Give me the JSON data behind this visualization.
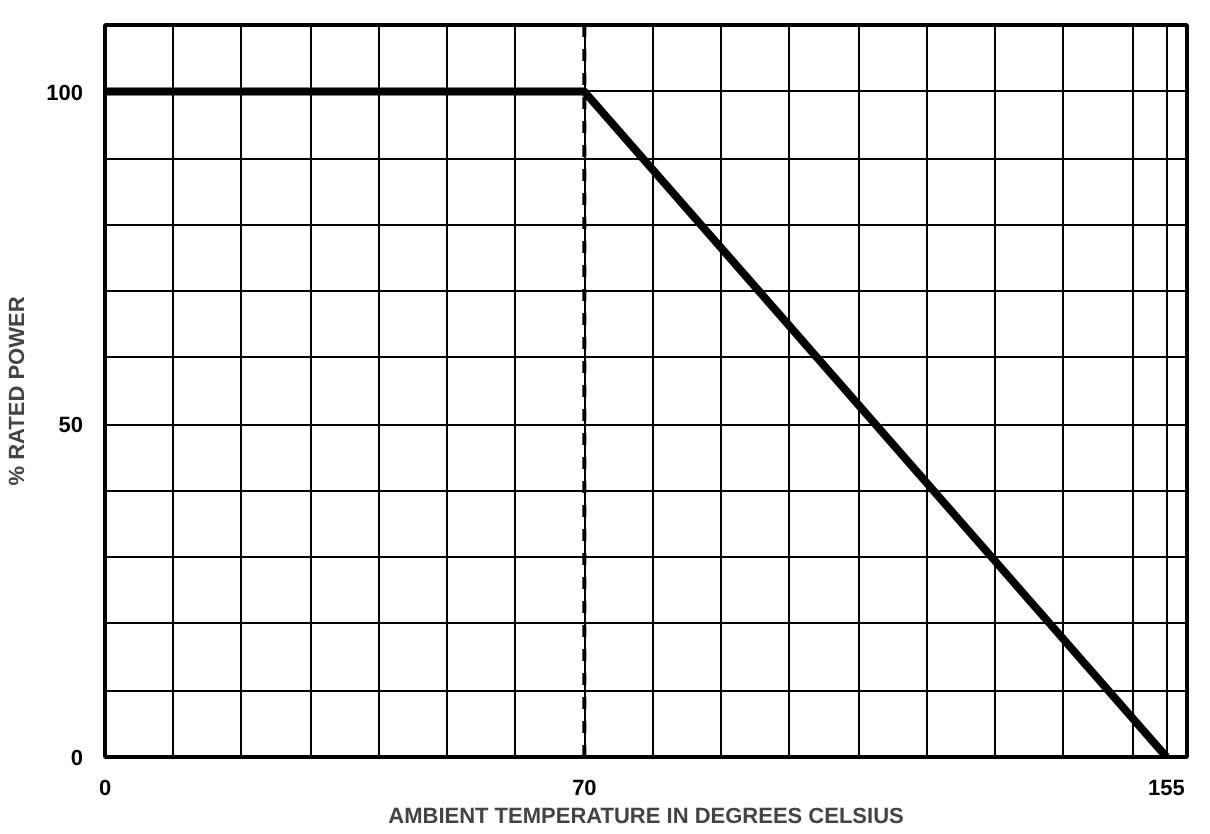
{
  "chart_data": {
    "type": "line",
    "xlabel": "AMBIENT TEMPERATURE IN DEGREES CELSIUS",
    "ylabel": "% RATED POWER",
    "x": [
      0,
      70,
      155
    ],
    "series": [
      {
        "color": "#000000",
        "values": [
          100,
          100,
          0
        ]
      }
    ],
    "xlim": [
      0,
      158
    ],
    "ylim": [
      0,
      110
    ],
    "xticks": [
      0,
      {
        "value": 10,
        "label": null
      },
      {
        "value": 20,
        "label": null
      },
      {
        "value": 30,
        "label": null
      },
      {
        "value": 40,
        "label": null
      },
      {
        "value": 50,
        "label": null
      },
      {
        "value": 60,
        "label": null
      },
      70,
      {
        "value": 80,
        "label": null
      },
      {
        "value": 90,
        "label": null
      },
      {
        "value": 100,
        "label": null
      },
      {
        "value": 110,
        "label": null
      },
      {
        "value": 120,
        "label": null
      },
      {
        "value": 130,
        "label": null
      },
      {
        "value": 140,
        "label": null
      },
      {
        "value": 150,
        "label": null
      },
      155
    ],
    "yticks": [
      0,
      {
        "value": 10,
        "label": null
      },
      {
        "value": 20,
        "label": null
      },
      {
        "value": 30,
        "label": null
      },
      {
        "value": 40,
        "label": null
      },
      50,
      {
        "value": 60,
        "label": null
      },
      {
        "value": 70,
        "label": null
      },
      {
        "value": 80,
        "label": null
      },
      {
        "value": 90,
        "label": null
      },
      100
    ],
    "grid": true,
    "ref_lines": [
      {
        "axis": "x",
        "value": 70,
        "line_style": "dashed",
        "color": "#000000"
      }
    ],
    "marker": "none",
    "line_style": "solid"
  }
}
